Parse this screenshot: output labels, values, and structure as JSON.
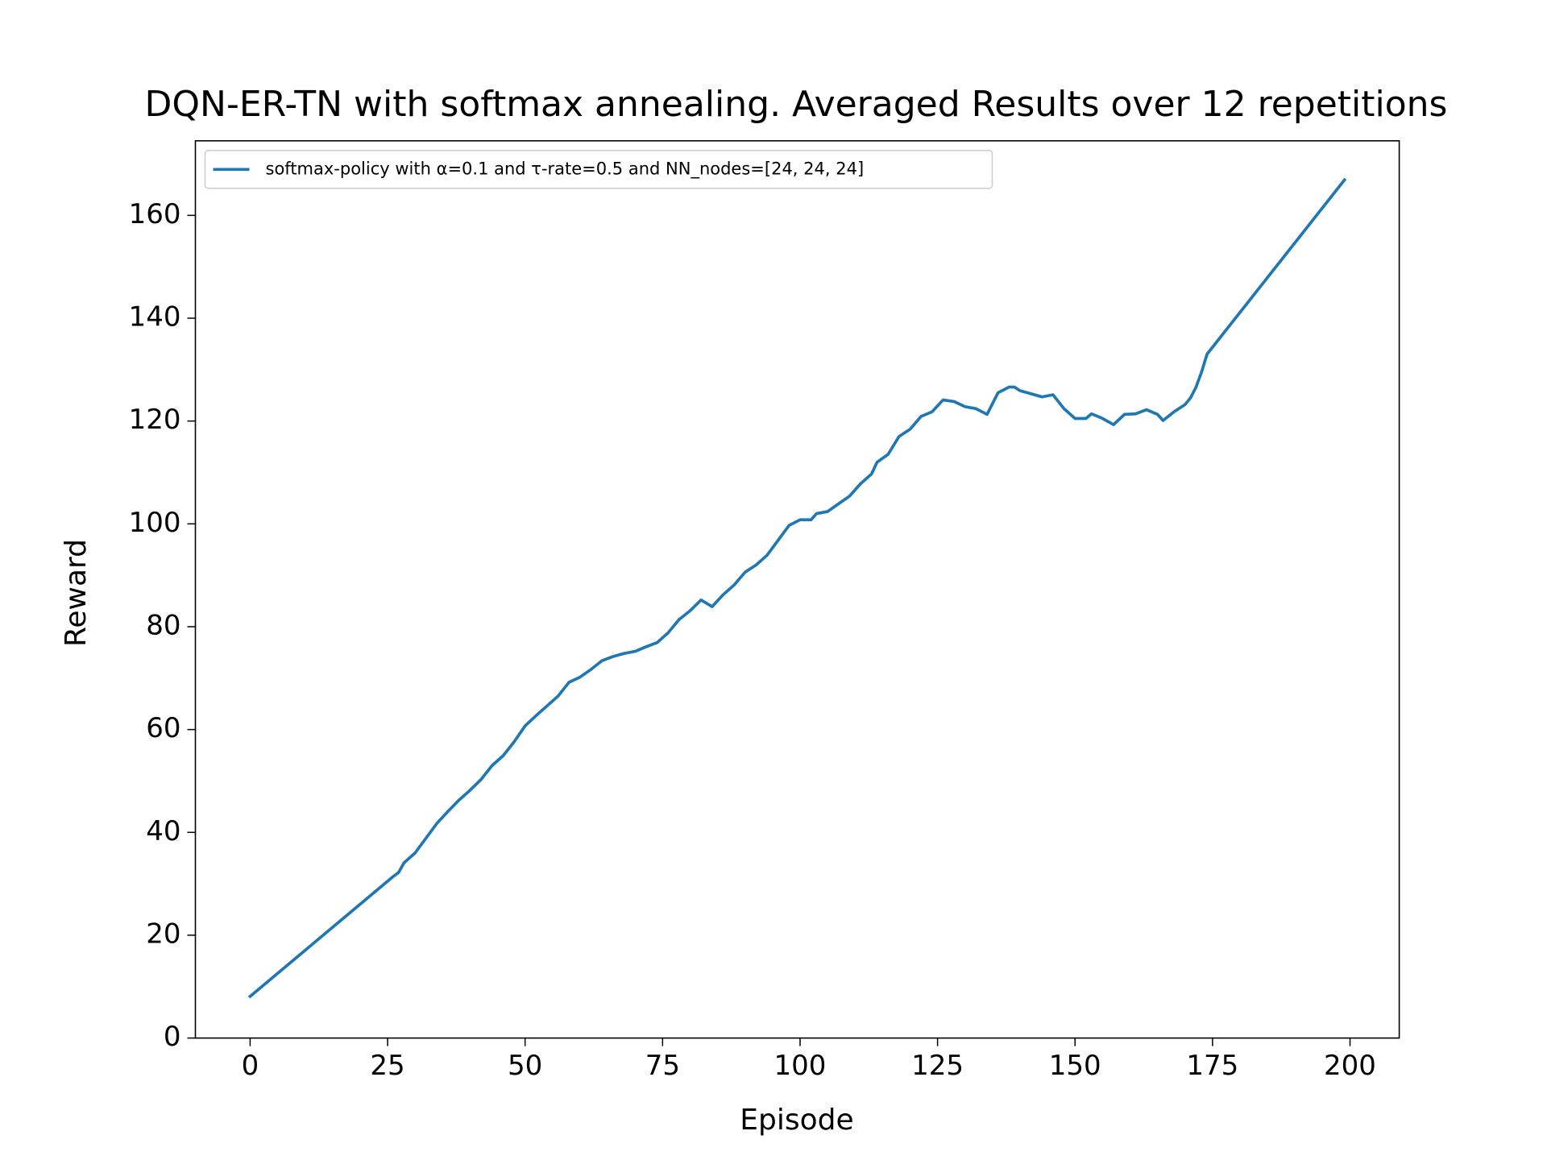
{
  "chart_data": {
    "type": "line",
    "title": "DQN-ER-TN with softmax annealing. Averaged Results over 12 repetitions",
    "x_label": "Episode",
    "y_label": "Reward",
    "x": [
      0,
      26,
      27,
      28,
      30,
      32,
      34,
      36,
      38,
      40,
      42,
      44,
      46,
      48,
      50,
      52,
      54,
      56,
      58,
      60,
      62,
      64,
      66,
      68,
      70,
      72,
      74,
      76,
      78,
      80,
      82,
      84,
      86,
      88,
      90,
      92,
      94,
      96,
      98,
      100,
      102,
      103,
      105,
      107,
      109,
      111,
      113,
      114,
      116,
      118,
      120,
      122,
      124,
      126,
      128,
      130,
      132,
      134,
      136,
      138,
      139,
      140,
      142,
      144,
      146,
      148,
      150,
      152,
      153,
      155,
      157,
      159,
      161,
      163,
      165,
      166,
      168,
      170,
      171,
      172,
      173,
      174,
      199
    ],
    "series": [
      {
        "name": "softmax-policy with α=0.1 and τ-rate=0.5 and NN_nodes=[24, 24, 24]",
        "color": "#1f77b4",
        "values": [
          8.1,
          31.4,
          32.2,
          34.1,
          36.0,
          38.9,
          41.8,
          44.1,
          46.3,
          48.2,
          50.3,
          53.0,
          54.9,
          57.6,
          60.7,
          62.7,
          64.6,
          66.5,
          69.2,
          70.2,
          71.7,
          73.4,
          74.2,
          74.8,
          75.2,
          76.1,
          76.9,
          78.8,
          81.4,
          83.1,
          85.2,
          83.9,
          86.2,
          88.1,
          90.6,
          92.0,
          93.9,
          96.8,
          99.7,
          100.8,
          100.8,
          102.0,
          102.4,
          103.9,
          105.4,
          107.8,
          109.7,
          112.0,
          113.5,
          117.0,
          118.4,
          120.9,
          121.8,
          124.1,
          123.8,
          122.8,
          122.4,
          121.3,
          125.5,
          126.6,
          126.6,
          125.9,
          125.3,
          124.7,
          125.1,
          122.4,
          120.5,
          120.5,
          121.4,
          120.5,
          119.3,
          121.3,
          121.4,
          122.2,
          121.3,
          120.1,
          121.8,
          123.2,
          124.5,
          126.6,
          129.5,
          133.0,
          166.9
        ]
      }
    ],
    "xlim": [
      -9.95,
      208.95
    ],
    "ylim": [
      0,
      174.5
    ],
    "xticks": [
      0,
      25,
      50,
      75,
      100,
      125,
      150,
      175,
      200
    ],
    "yticks": [
      0,
      20,
      40,
      60,
      80,
      100,
      120,
      140,
      160
    ],
    "grid": false,
    "legend": "upper left"
  }
}
